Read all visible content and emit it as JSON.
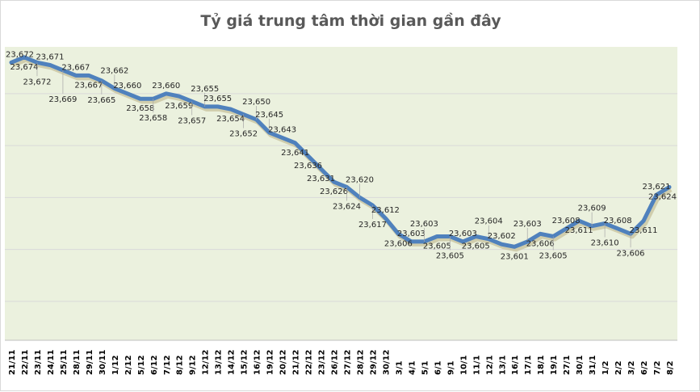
{
  "chart_data": {
    "type": "line",
    "title": "Tỷ giá trung tâm thời gian gần đây",
    "xlabel": "",
    "ylabel": "",
    "ylim": [
      23565,
      23678
    ],
    "grid": true,
    "gridlines": [
      23580,
      23600,
      23620,
      23640,
      23660
    ],
    "colors": {
      "line": "#4f81bd",
      "plot_bg": "#ebf1de",
      "grid": "#d9d9d9"
    },
    "categories": [
      "21/11",
      "22/11",
      "23/11",
      "24/11",
      "25/11",
      "28/11",
      "29/11",
      "30/11",
      "1/12",
      "2/12",
      "5/12",
      "6/12",
      "7/12",
      "8/12",
      "9/12",
      "12/12",
      "13/12",
      "14/12",
      "15/12",
      "16/12",
      "19/12",
      "20/12",
      "21/12",
      "22/12",
      "23/12",
      "26/12",
      "27/12",
      "28/12",
      "29/12",
      "30/12",
      "3/1",
      "4/1",
      "5/1",
      "6/1",
      "9/1",
      "10/1",
      "11/1",
      "12/1",
      "13/1",
      "16/1",
      "17/1",
      "18/1",
      "19/1",
      "27/1",
      "30/1",
      "31/1",
      "1/2",
      "2/2",
      "3/2",
      "6/2",
      "7/2",
      "8/2"
    ],
    "values": [
      23672,
      23674,
      23672,
      23671,
      23669,
      23667,
      23667,
      23665,
      23662,
      23660,
      23658,
      23658,
      23660,
      23659,
      23657,
      23655,
      23655,
      23654,
      23652,
      23650,
      23645,
      23643,
      23641,
      23636,
      23631,
      23626,
      23624,
      23620,
      23617,
      23612,
      23606,
      23603,
      23603,
      23605,
      23605,
      23603,
      23605,
      23604,
      23602,
      23601,
      23603,
      23606,
      23605,
      23608,
      23611,
      23609,
      23610,
      23608,
      23606,
      23611,
      23621,
      23624
    ],
    "labels": [
      "23,672",
      "23,674",
      "23,672",
      "23,671",
      "23,669",
      "23,667",
      "23,667",
      "23,665",
      "23,662",
      "23,660",
      "23,658",
      "23,658",
      "23,660",
      "23,659",
      "23,657",
      "23,655",
      "23,655",
      "23,654",
      "23,652",
      "23,650",
      "23,645",
      "23,643",
      "23,641",
      "23,636",
      "23,631",
      "23,626",
      "23,624",
      "23,620",
      "23,617",
      "23,612",
      "23,606",
      "23,603",
      "23,603",
      "23,605",
      "23,605",
      "23,603",
      "23,605",
      "23,604",
      "23,602",
      "23,601",
      "23,603",
      "23,606",
      "23,605",
      "23,608",
      "23,611",
      "23,609",
      "23,610",
      "23,608",
      "23,606",
      "23,611",
      "23,621",
      "23,624"
    ]
  }
}
